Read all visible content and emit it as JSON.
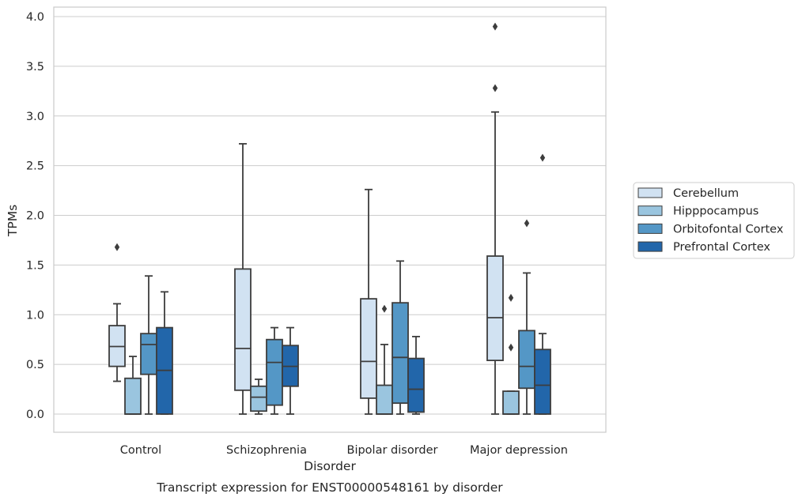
{
  "chart_data": {
    "type": "box",
    "caption": "Transcript expression for ENST00000548161 by disorder",
    "xlabel": "Disorder",
    "ylabel": "TPMs",
    "ylim": [
      -0.19,
      4.1
    ],
    "yticks": [
      "0.0",
      "0.5",
      "1.0",
      "1.5",
      "2.0",
      "2.5",
      "3.0",
      "3.5",
      "4.0"
    ],
    "grid": true,
    "legend_position": "right",
    "categories": [
      "Control",
      "Schizophrenia",
      "Bipolar disorder",
      "Major depression"
    ],
    "series": [
      {
        "name": "Cerebellum",
        "color": "#d1e2f2",
        "boxes": [
          {
            "whisker_low": 0.33,
            "q1": 0.48,
            "median": 0.68,
            "q3": 0.89,
            "whisker_high": 1.11,
            "outliers": [
              1.68
            ]
          },
          {
            "whisker_low": 0.0,
            "q1": 0.24,
            "median": 0.66,
            "q3": 1.46,
            "whisker_high": 2.72,
            "outliers": []
          },
          {
            "whisker_low": 0.0,
            "q1": 0.16,
            "median": 0.53,
            "q3": 1.16,
            "whisker_high": 2.26,
            "outliers": []
          },
          {
            "whisker_low": 0.0,
            "q1": 0.54,
            "median": 0.97,
            "q3": 1.59,
            "whisker_high": 3.04,
            "outliers": [
              3.28,
              3.9
            ]
          }
        ]
      },
      {
        "name": "Hipppocampus",
        "color": "#9ac5df",
        "boxes": [
          {
            "whisker_low": 0.0,
            "q1": 0.0,
            "median": 0.0,
            "q3": 0.36,
            "whisker_high": 0.58,
            "outliers": []
          },
          {
            "whisker_low": 0.0,
            "q1": 0.03,
            "median": 0.17,
            "q3": 0.28,
            "whisker_high": 0.35,
            "outliers": []
          },
          {
            "whisker_low": 0.0,
            "q1": 0.0,
            "median": 0.0,
            "q3": 0.29,
            "whisker_high": 0.7,
            "outliers": [
              1.06
            ]
          },
          {
            "whisker_low": 0.0,
            "q1": 0.0,
            "median": 0.0,
            "q3": 0.23,
            "whisker_high": 0.23,
            "outliers": [
              0.67,
              1.17
            ]
          }
        ]
      },
      {
        "name": "Orbitofontal Cortex",
        "color": "#5497c6",
        "boxes": [
          {
            "whisker_low": 0.0,
            "q1": 0.4,
            "median": 0.7,
            "q3": 0.81,
            "whisker_high": 1.39,
            "outliers": []
          },
          {
            "whisker_low": 0.0,
            "q1": 0.09,
            "median": 0.52,
            "q3": 0.75,
            "whisker_high": 0.87,
            "outliers": []
          },
          {
            "whisker_low": 0.0,
            "q1": 0.11,
            "median": 0.57,
            "q3": 1.12,
            "whisker_high": 1.54,
            "outliers": []
          },
          {
            "whisker_low": 0.0,
            "q1": 0.26,
            "median": 0.48,
            "q3": 0.84,
            "whisker_high": 1.42,
            "outliers": [
              1.92
            ]
          }
        ]
      },
      {
        "name": "Prefrontal Cortex",
        "color": "#2266aa",
        "boxes": [
          {
            "whisker_low": 0.0,
            "q1": 0.0,
            "median": 0.44,
            "q3": 0.87,
            "whisker_high": 1.23,
            "outliers": []
          },
          {
            "whisker_low": 0.0,
            "q1": 0.28,
            "median": 0.48,
            "q3": 0.69,
            "whisker_high": 0.87,
            "outliers": []
          },
          {
            "whisker_low": 0.0,
            "q1": 0.02,
            "median": 0.25,
            "q3": 0.56,
            "whisker_high": 0.78,
            "outliers": []
          },
          {
            "whisker_low": 0.0,
            "q1": 0.0,
            "median": 0.29,
            "q3": 0.65,
            "whisker_high": 0.81,
            "outliers": [
              2.58
            ]
          }
        ]
      }
    ]
  }
}
